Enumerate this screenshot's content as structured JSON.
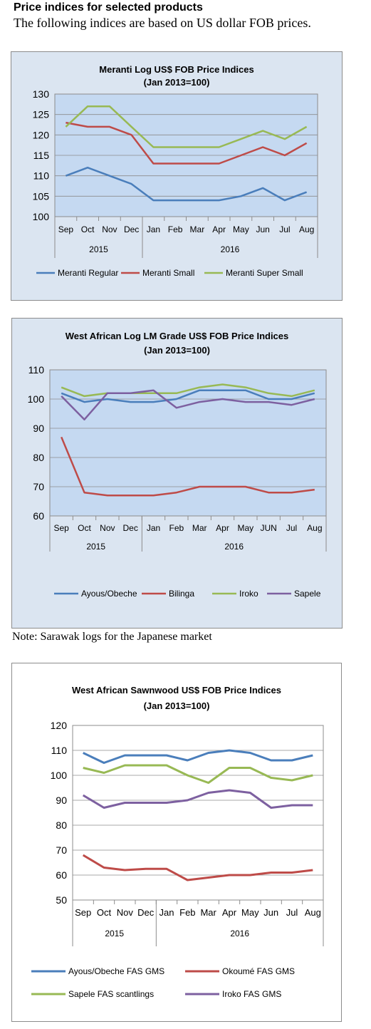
{
  "page": {
    "heading": "Price indices for selected products",
    "subheading": "The following indices are based on US dollar FOB prices.",
    "note": "Note: Sarawak logs for the Japanese market"
  },
  "chart_data": [
    {
      "type": "line",
      "title": "Meranti Log US$ FOB Price Indices",
      "subtitle": "(Jan 2013=100)",
      "categories": [
        "Sep",
        "Oct",
        "Nov",
        "Dec",
        "Jan",
        "Feb",
        "Mar",
        "Apr",
        "May",
        "Jun",
        "Jul",
        "Aug"
      ],
      "years": [
        {
          "label": "2015",
          "count": 4
        },
        {
          "label": "2016",
          "count": 8
        }
      ],
      "ylim": [
        100,
        130
      ],
      "yticks": [
        100,
        105,
        110,
        115,
        120,
        125,
        130
      ],
      "grid": true,
      "legend_position": "bottom",
      "plot_background": "#c5d9f1",
      "series": [
        {
          "name": "Meranti Regular",
          "color": "#4a7ebb",
          "values": [
            110,
            112,
            110,
            108,
            104,
            104,
            104,
            104,
            105,
            107,
            104,
            106
          ]
        },
        {
          "name": "Meranti Small",
          "color": "#be4b48",
          "values": [
            123,
            122,
            122,
            120,
            113,
            113,
            113,
            113,
            115,
            117,
            115,
            118
          ]
        },
        {
          "name": "Meranti Super Small",
          "color": "#98b954",
          "values": [
            122,
            127,
            127,
            122,
            117,
            117,
            117,
            117,
            119,
            121,
            119,
            122
          ]
        }
      ]
    },
    {
      "type": "line",
      "title": "West African Log LM Grade US$ FOB Price Indices",
      "subtitle": "(Jan 2013=100)",
      "categories": [
        "Sep",
        "Oct",
        "Nov",
        "Dec",
        "Jan",
        "Feb",
        "Mar",
        "Apr",
        "May",
        "JUN",
        "Jul",
        "Aug"
      ],
      "years": [
        {
          "label": "2015",
          "count": 4
        },
        {
          "label": "2016",
          "count": 8
        }
      ],
      "ylim": [
        60,
        110
      ],
      "yticks": [
        60,
        70,
        80,
        90,
        100,
        110
      ],
      "grid": true,
      "legend_position": "bottom",
      "plot_background": "#c5d9f1",
      "series": [
        {
          "name": "Ayous/Obeche",
          "color": "#4a7ebb",
          "values": [
            102,
            99,
            100,
            99,
            99,
            100,
            103,
            103,
            103,
            100,
            100,
            102
          ]
        },
        {
          "name": "Bilinga",
          "color": "#be4b48",
          "values": [
            87,
            68,
            67,
            67,
            67,
            68,
            70,
            70,
            70,
            68,
            68,
            69
          ]
        },
        {
          "name": "Iroko",
          "color": "#98b954",
          "values": [
            104,
            101,
            102,
            102,
            102,
            102,
            104,
            105,
            104,
            102,
            101,
            103
          ]
        },
        {
          "name": "Sapele",
          "color": "#7d60a0",
          "values": [
            101,
            93,
            102,
            102,
            103,
            97,
            99,
            100,
            99,
            99,
            98,
            100
          ]
        }
      ]
    },
    {
      "type": "line",
      "title": "West African Sawnwood US$ FOB Price Indices",
      "subtitle": "(Jan 2013=100)",
      "categories": [
        "Sep",
        "Oct",
        "Nov",
        "Dec",
        "Jan",
        "Feb",
        "Mar",
        "Apr",
        "May",
        "Jun",
        "Jul",
        "Aug"
      ],
      "years": [
        {
          "label": "2015",
          "count": 4
        },
        {
          "label": "2016",
          "count": 8
        }
      ],
      "ylim": [
        50,
        120
      ],
      "yticks": [
        50,
        60,
        70,
        80,
        90,
        100,
        110,
        120
      ],
      "grid": true,
      "legend_position": "bottom",
      "plot_background": "#ffffff",
      "series": [
        {
          "name": "Ayous/Obeche  FAS GMS",
          "color": "#4a7ebb",
          "values": [
            109,
            105,
            108,
            108,
            108,
            106,
            109,
            110,
            109,
            106,
            106,
            108
          ]
        },
        {
          "name": "Okoumé  FAS GMS",
          "color": "#be4b48",
          "values": [
            68,
            63,
            62,
            62.5,
            62.5,
            58,
            59,
            60,
            60,
            61,
            61,
            62
          ]
        },
        {
          "name": "Sapele FAS scantlings",
          "color": "#98b954",
          "values": [
            103,
            101,
            104,
            104,
            104,
            100,
            97,
            103,
            103,
            99,
            98,
            100
          ]
        },
        {
          "name": "Iroko FAS GMS",
          "color": "#7d60a0",
          "values": [
            92,
            87,
            89,
            89,
            89,
            90,
            93,
            94,
            93,
            87,
            88,
            88
          ]
        }
      ]
    }
  ]
}
